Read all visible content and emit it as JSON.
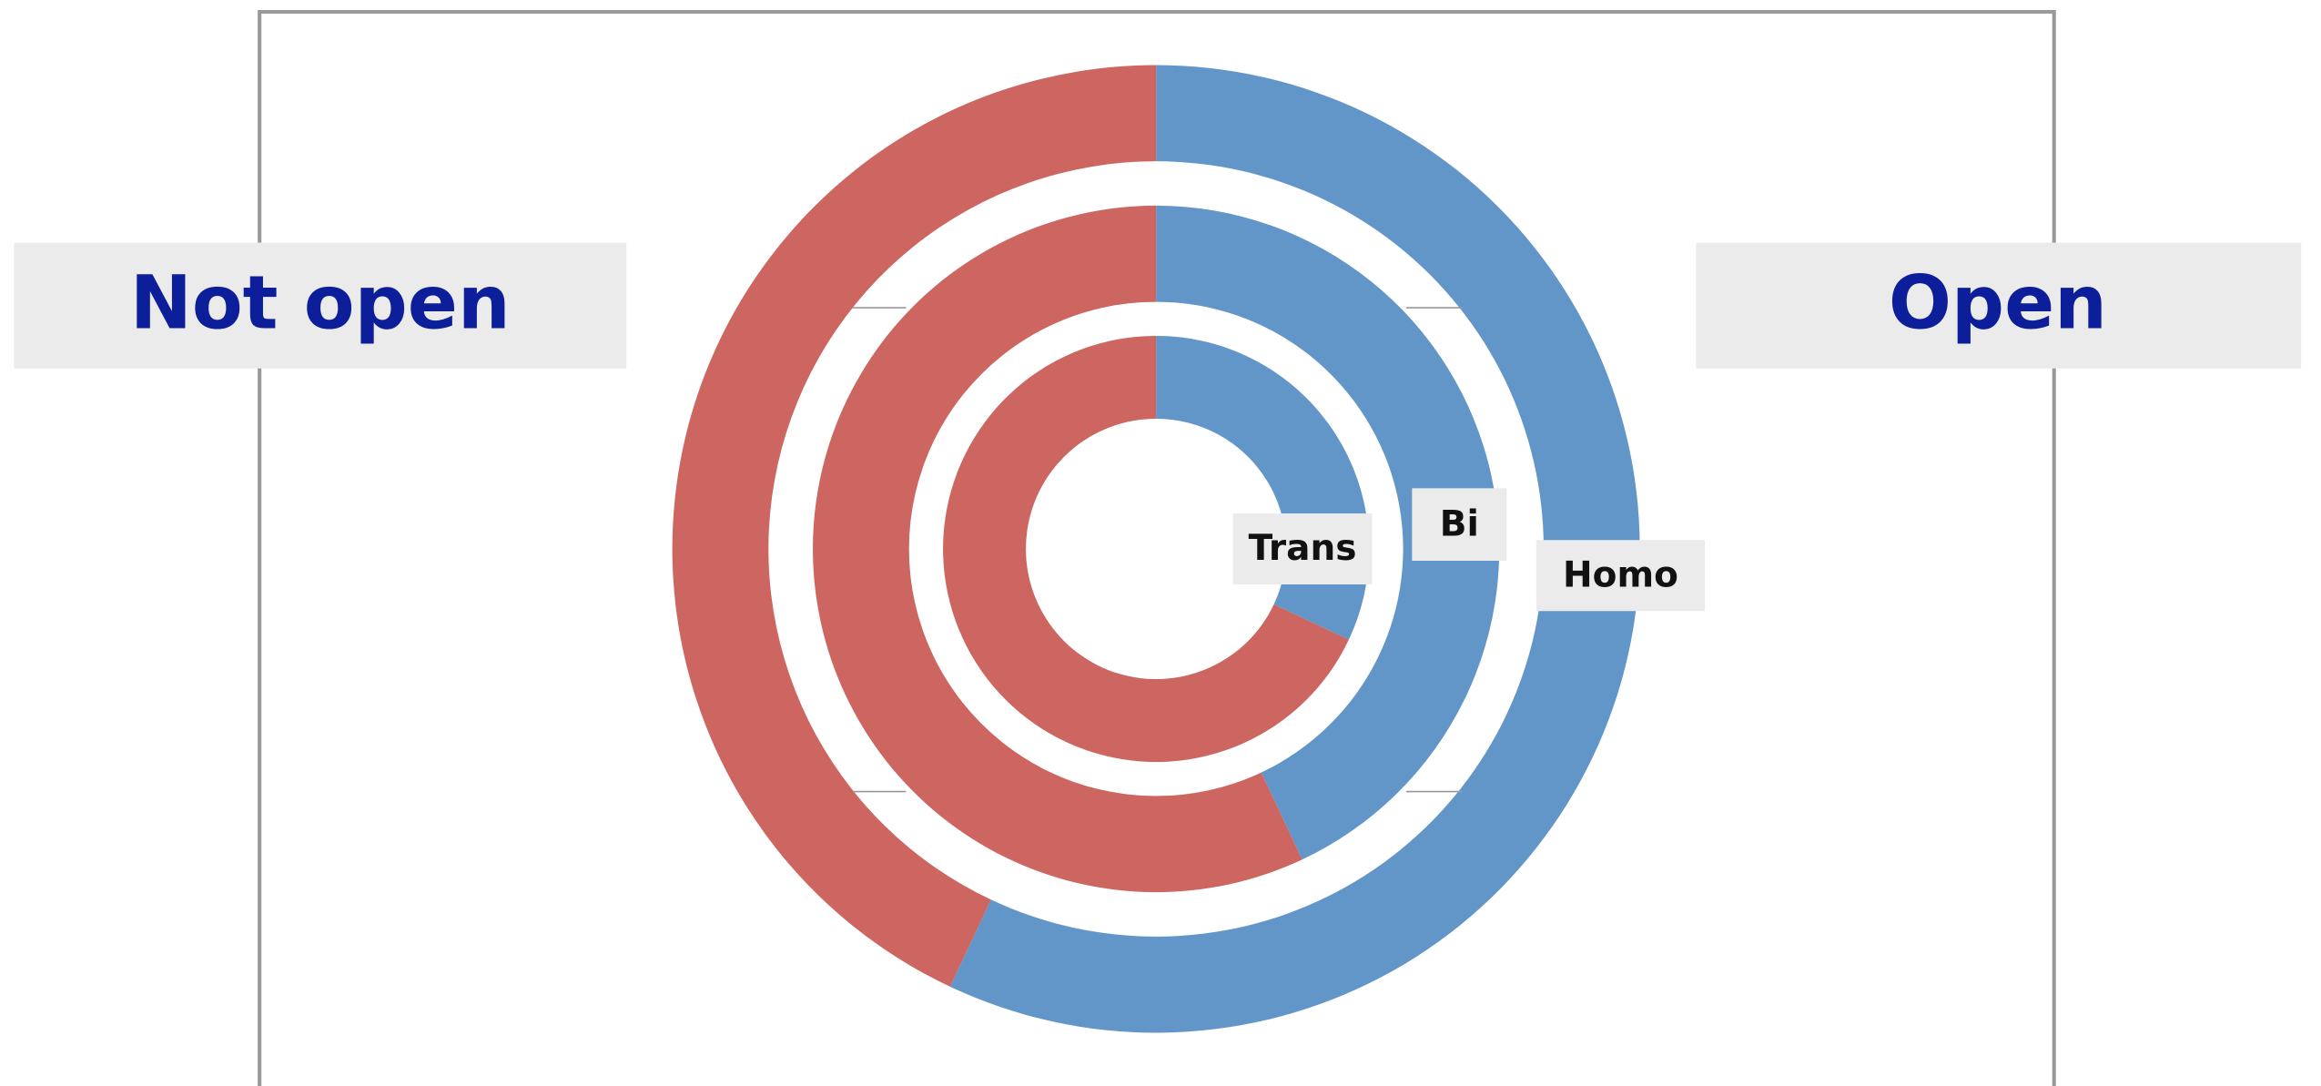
{
  "chart_data": {
    "type": "donut",
    "categories": [
      "Homo",
      "Bi",
      "Trans"
    ],
    "series": [
      {
        "name": "Open",
        "color": "#6296c9",
        "values": [
          57,
          43,
          32
        ]
      },
      {
        "name": "Not open",
        "color": "#cd6661",
        "values": [
          43,
          57,
          68
        ]
      }
    ]
  }
}
